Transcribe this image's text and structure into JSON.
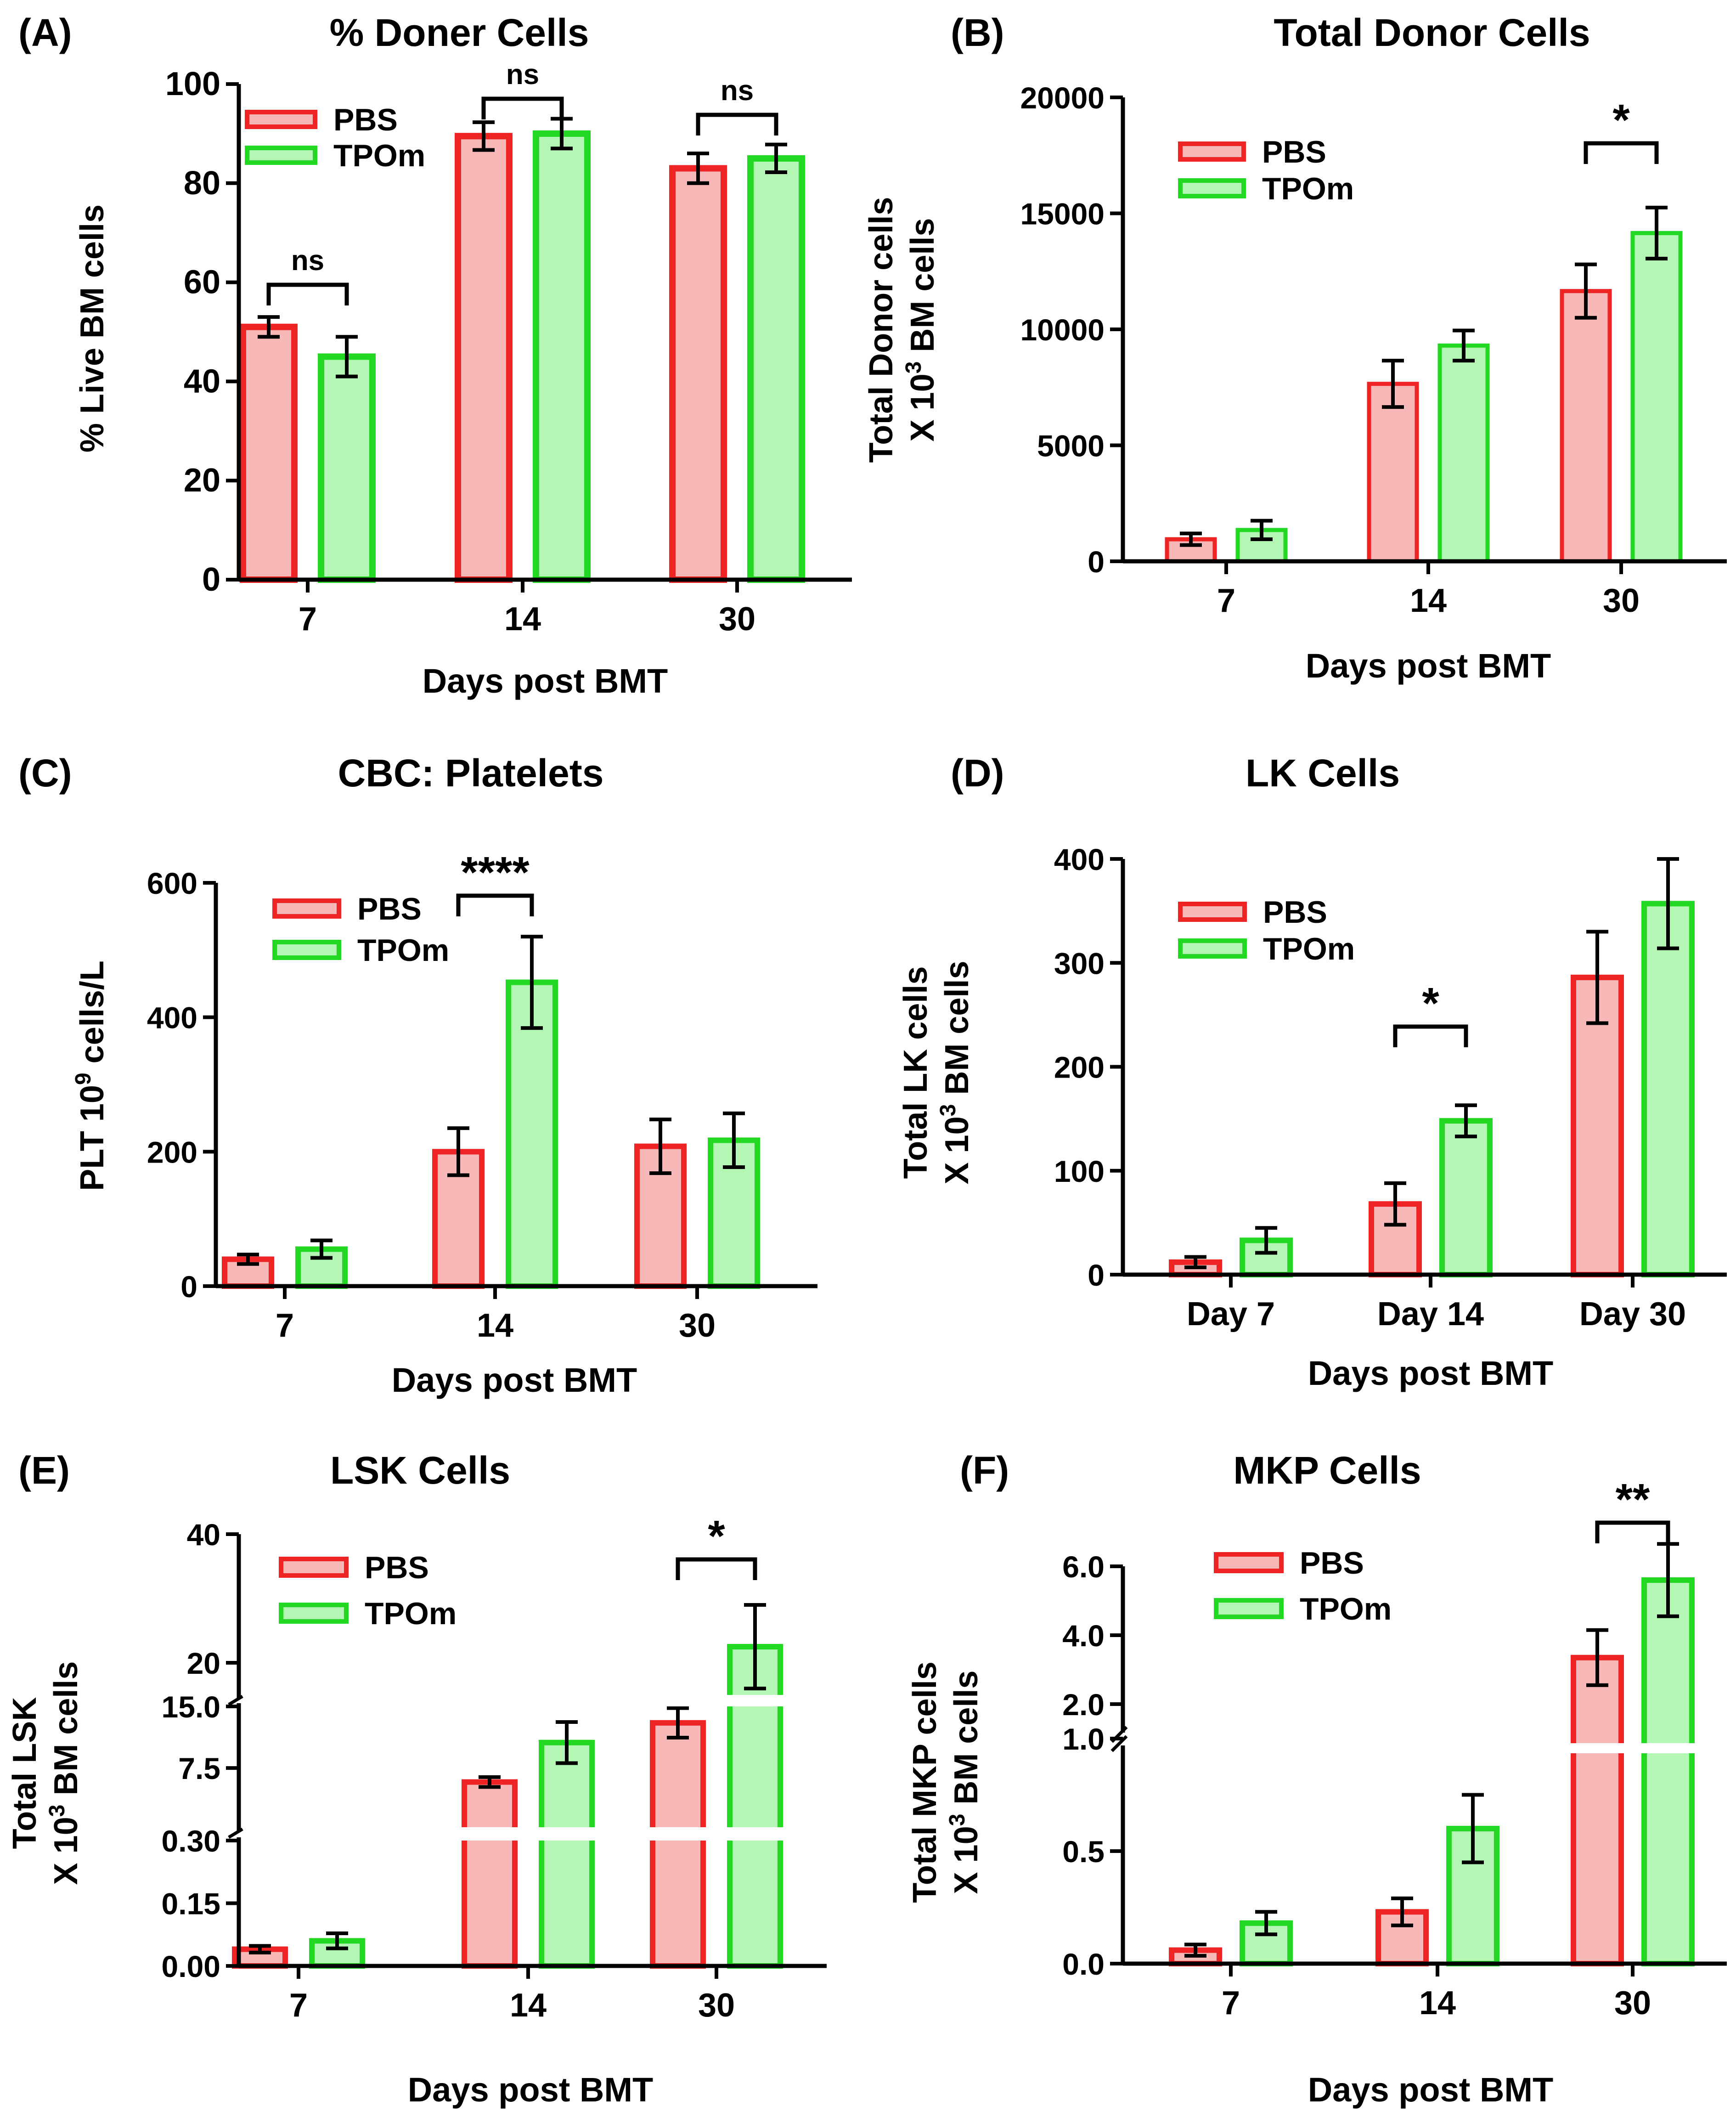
{
  "colors": {
    "pbs_fill": "#f9b8b8",
    "pbs_stroke": "#ee2424",
    "tpom_fill": "#b4f7b4",
    "tpom_stroke": "#22d822",
    "axis": "#000000"
  },
  "chart_data": [
    {
      "id": "A",
      "type": "bar",
      "panel_label": "(A)",
      "title": "% Doner Cells",
      "xlabel": "Days post BMT",
      "ylabel": "% Live BM cells",
      "categories": [
        "7",
        "14",
        "30"
      ],
      "ylim": [
        0,
        100
      ],
      "yticks": [
        0,
        20,
        40,
        60,
        80,
        100
      ],
      "series": [
        {
          "name": "PBS",
          "values": [
            51,
            89.5,
            83
          ],
          "errors": [
            2,
            2.8,
            3
          ]
        },
        {
          "name": "TPOm",
          "values": [
            45,
            90,
            85
          ],
          "errors": [
            4,
            3,
            2.8
          ]
        }
      ],
      "legend_position": "top-left",
      "significance": [
        {
          "category": "7",
          "text": "ns"
        },
        {
          "category": "14",
          "text": "ns"
        },
        {
          "category": "30",
          "text": "ns"
        }
      ]
    },
    {
      "id": "B",
      "type": "bar",
      "panel_label": "(B)",
      "title": "Total Donor Cells",
      "xlabel": "Days post BMT",
      "ylabel_lines": [
        "Total Donor cells",
        "X 10",
        "3",
        " BM cells"
      ],
      "categories": [
        "7",
        "14",
        "30"
      ],
      "ylim": [
        0,
        20000
      ],
      "yticks": [
        0,
        5000,
        10000,
        15000,
        20000
      ],
      "series": [
        {
          "name": "PBS",
          "values": [
            950,
            7650,
            11650
          ],
          "errors": [
            250,
            1000,
            1150
          ]
        },
        {
          "name": "TPOm",
          "values": [
            1350,
            9300,
            14150
          ],
          "errors": [
            400,
            650,
            1100
          ]
        }
      ],
      "legend_position": "top-left",
      "significance": [
        {
          "category": "30",
          "text": "*"
        }
      ]
    },
    {
      "id": "C",
      "type": "bar",
      "panel_label": "(C)",
      "title": "CBC: Platelets",
      "xlabel": "Days post BMT",
      "ylabel_lines": [
        "PLT 10",
        "9",
        " cells/L"
      ],
      "categories": [
        "7",
        "14",
        "30"
      ],
      "ylim": [
        0,
        600
      ],
      "yticks": [
        0,
        200,
        400,
        600
      ],
      "series": [
        {
          "name": "PBS",
          "values": [
            40,
            200,
            208
          ],
          "errors": [
            7,
            35,
            40
          ]
        },
        {
          "name": "TPOm",
          "values": [
            55,
            452,
            217
          ],
          "errors": [
            13,
            68,
            40
          ]
        }
      ],
      "legend_position": "top-left",
      "significance": [
        {
          "category": "14",
          "text": "****"
        }
      ]
    },
    {
      "id": "D",
      "type": "bar",
      "panel_label": "(D)",
      "title": "LK Cells",
      "xlabel": "Days post BMT",
      "ylabel_lines": [
        "Total LK cells",
        "X 10",
        "3",
        " BM cells"
      ],
      "categories": [
        "Day 7",
        "Day 14",
        "Day 30"
      ],
      "ylim": [
        0,
        400
      ],
      "yticks": [
        0,
        100,
        200,
        300,
        400
      ],
      "series": [
        {
          "name": "PBS",
          "values": [
            12,
            68,
            286
          ],
          "errors": [
            5,
            20,
            44
          ]
        },
        {
          "name": "TPOm",
          "values": [
            33,
            148,
            357
          ],
          "errors": [
            12,
            15,
            43
          ]
        }
      ],
      "legend_position": "top-left",
      "significance": [
        {
          "category": "Day 14",
          "text": "*"
        }
      ]
    },
    {
      "id": "E",
      "type": "bar",
      "panel_label": "(E)",
      "title": "LSK Cells",
      "xlabel": "Days post BMT",
      "ylabel_lines": [
        "Total LSK",
        "X 10",
        "3",
        " BM cells"
      ],
      "categories": [
        "7",
        "14",
        "30"
      ],
      "y_axis_breaks": [
        0.3,
        15
      ],
      "ytick_labels": [
        "0.00",
        "0.15",
        "0.30",
        "7.5",
        "15.0",
        "20",
        "40"
      ],
      "series": [
        {
          "name": "PBS",
          "values": [
            0.04,
            5.8,
            13
          ],
          "errors": [
            0.008,
            0.6,
            1.8
          ]
        },
        {
          "name": "TPOm",
          "values": [
            0.06,
            10.6,
            22.5
          ],
          "errors": [
            0.018,
            2.5,
            6.5
          ]
        }
      ],
      "legend_position": "top-left",
      "significance": [
        {
          "category": "30",
          "text": "*"
        }
      ]
    },
    {
      "id": "F",
      "type": "bar",
      "panel_label": "(F)",
      "title": "MKP Cells",
      "xlabel": "Days post BMT",
      "ylabel_lines": [
        "Total MKP cells",
        "X 10",
        "3",
        " BM cells"
      ],
      "categories": [
        "7",
        "14",
        "30"
      ],
      "y_axis_breaks": [
        1.0
      ],
      "ytick_labels": [
        "0.0",
        "0.5",
        "1.0",
        "2.0",
        "4.0",
        "6.0"
      ],
      "series": [
        {
          "name": "PBS",
          "values": [
            0.06,
            0.23,
            3.35
          ],
          "errors": [
            0.025,
            0.06,
            0.8
          ]
        },
        {
          "name": "TPOm",
          "values": [
            0.18,
            0.6,
            5.6
          ],
          "errors": [
            0.05,
            0.15,
            1.05
          ]
        }
      ],
      "legend_position": "top-left",
      "significance": [
        {
          "category": "30",
          "text": "**"
        }
      ]
    }
  ]
}
